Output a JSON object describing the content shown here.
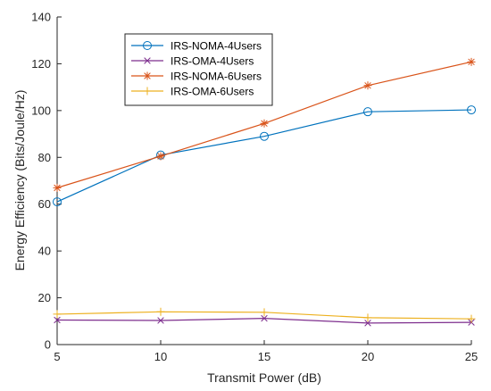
{
  "chart_data": {
    "type": "line",
    "title": "",
    "xlabel": "Transmit Power (dB)",
    "ylabel": "Energy Efficiency (Bits/Joule/Hz)",
    "x": [
      5,
      10,
      15,
      20,
      25
    ],
    "xlim": [
      5,
      25
    ],
    "ylim": [
      0,
      140
    ],
    "xticks": [
      "5",
      "10",
      "15",
      "20",
      "25"
    ],
    "yticks": [
      "0",
      "20",
      "40",
      "60",
      "80",
      "100",
      "120",
      "140"
    ],
    "grid": false,
    "legend_position": "top-left",
    "series": [
      {
        "name": "IRS-NOMA-4Users",
        "color": "#0072BD",
        "marker": "circle",
        "values": [
          61,
          81,
          89,
          99.5,
          100.3
        ]
      },
      {
        "name": "IRS-OMA-4Users",
        "color": "#7E2F8E",
        "marker": "x",
        "values": [
          10.5,
          10.3,
          11.2,
          9.2,
          9.5
        ]
      },
      {
        "name": "IRS-NOMA-6Users",
        "color": "#D95319",
        "marker": "asterisk",
        "values": [
          67,
          80.5,
          94.5,
          110.7,
          120.8
        ]
      },
      {
        "name": "IRS-OMA-6Users",
        "color": "#EDB120",
        "marker": "plus",
        "values": [
          13,
          14,
          13.8,
          11.5,
          11
        ]
      }
    ]
  }
}
